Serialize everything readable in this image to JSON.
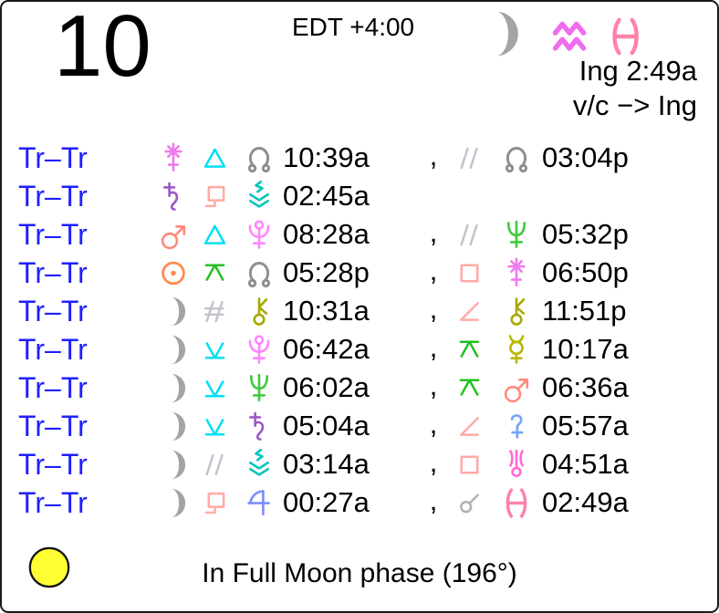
{
  "cell": {
    "day_number": "10",
    "timezone_label": "EDT +4:00",
    "moon_icon": "moon",
    "moon_sign_from": "aquarius",
    "moon_sign_to": "pisces",
    "ingress_label": "Ing 2:49a",
    "void_of_course_label": "v/c −> Ing",
    "separator": ","
  },
  "aspect_rows": [
    {
      "label": "Tr–Tr",
      "planet1": "juno",
      "aspect1": "trine",
      "point1": "north-node",
      "time1": "10:39a",
      "aspect2": "parallel",
      "point2": "north-node",
      "time2": "03:04p"
    },
    {
      "label": "Tr–Tr",
      "planet1": "saturn",
      "aspect1": "sesquiquadrate",
      "point1": "vesta",
      "time1": "02:45a"
    },
    {
      "label": "Tr–Tr",
      "planet1": "mars",
      "aspect1": "trine",
      "point1": "pluto",
      "time1": "08:28a",
      "aspect2": "parallel",
      "point2": "neptune",
      "time2": "05:32p"
    },
    {
      "label": "Tr–Tr",
      "planet1": "sun",
      "aspect1": "quincunx",
      "point1": "north-node",
      "time1": "05:28p",
      "aspect2": "square",
      "point2": "juno",
      "time2": "06:50p"
    },
    {
      "label": "Tr–Tr",
      "planet1": "moon",
      "aspect1": "contraparallel",
      "point1": "chiron",
      "time1": "10:31a",
      "aspect2": "semisquare",
      "point2": "chiron",
      "time2": "11:51p"
    },
    {
      "label": "Tr–Tr",
      "planet1": "moon",
      "aspect1": "semisextile",
      "point1": "pluto",
      "time1": "06:42a",
      "aspect2": "quincunx",
      "point2": "mercury",
      "time2": "10:17a"
    },
    {
      "label": "Tr–Tr",
      "planet1": "moon",
      "aspect1": "semisextile",
      "point1": "neptune",
      "time1": "06:02a",
      "aspect2": "quincunx",
      "point2": "mars",
      "time2": "06:36a"
    },
    {
      "label": "Tr–Tr",
      "planet1": "moon",
      "aspect1": "semisextile",
      "point1": "saturn",
      "time1": "05:04a",
      "aspect2": "semisquare",
      "point2": "ceres",
      "time2": "05:57a"
    },
    {
      "label": "Tr–Tr",
      "planet1": "moon",
      "aspect1": "parallel",
      "point1": "vesta",
      "time1": "03:14a",
      "aspect2": "square",
      "point2": "uranus",
      "time2": "04:51a"
    },
    {
      "label": "Tr–Tr",
      "planet1": "moon",
      "aspect1": "sesquiquadrate",
      "point1": "jupiter",
      "time1": "00:27a",
      "aspect2": "conjunction",
      "point2": "pisces",
      "time2": "02:49a"
    }
  ],
  "footer": {
    "phase_icon": "full-moon",
    "phase_label": "In Full Moon phase (196°)"
  },
  "colors": {
    "sun": "#ff8c4c",
    "moon": "#a4a4a4",
    "mercury": "#b8b800",
    "ceres": "#74a4ff",
    "mars": "#ff8a7a",
    "jupiter": "#7d8cff",
    "saturn": "#9c59c4",
    "uranus": "#ff6ad4",
    "neptune": "#3fca3f",
    "pluto": "#ff86ff",
    "north-node": "#8f8f8f",
    "chiron": "#a8a800",
    "juno": "#f07af0",
    "vesta": "#00c4bc",
    "aquarius": "#ee6cee",
    "pisces": "#ff82a8",
    "trine": "#00e0f4",
    "square": "#ffaaa6",
    "semisquare": "#ffaaa6",
    "sesquiquadrate": "#ffaaa6",
    "quincunx": "#22c022",
    "semisextile": "#00e0f4",
    "parallel": "#c3c3cc",
    "contraparallel": "#c3c3cc",
    "conjunction": "#b0b0b0",
    "label": "#1f1fff",
    "full-moon": "#ffff33"
  }
}
